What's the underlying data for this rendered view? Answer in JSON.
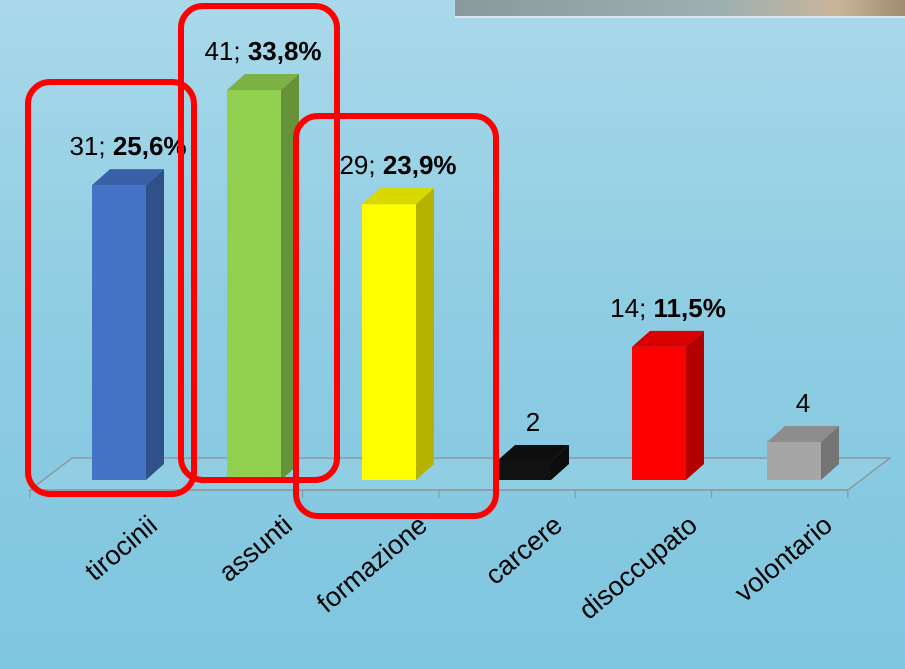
{
  "chart_data": {
    "type": "bar",
    "style": "3d-column",
    "categories": [
      "tirocinii",
      "assunti",
      "formazione",
      "carcere",
      "disoccupato",
      "volontario"
    ],
    "values": [
      31,
      41,
      29,
      2,
      14,
      4
    ],
    "count_labels": [
      "31",
      "41",
      "29",
      "2",
      "14",
      "4"
    ],
    "percent_labels": [
      "25,6%",
      "33,8%",
      "23,9%",
      "",
      "11,5%",
      ""
    ],
    "colors": [
      "#4472c4",
      "#92d050",
      "#ffff00",
      "#111111",
      "#ff0000",
      "#a6a6a6"
    ],
    "highlighted_categories": [
      "tirocinii",
      "assunti",
      "formazione"
    ],
    "highlight_color": "#ff0000",
    "ylim": [
      0,
      41
    ],
    "grid": false,
    "legend": "none",
    "title": "",
    "xlabel": "",
    "ylabel": ""
  }
}
